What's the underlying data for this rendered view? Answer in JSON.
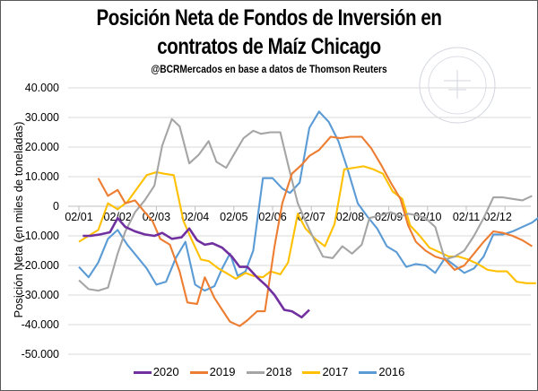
{
  "header": {
    "title_line1": "Posición Neta de Fondos de Inversión en",
    "title_line2": "contratos de Maíz Chicago",
    "subtitle": "@BCRMercados en base a datos de Thomson Reuters"
  },
  "watermark": "Bolsa de Comercio de Rosario seal",
  "chart_data": {
    "type": "line",
    "title": "Posición Neta de Fondos de Inversión en contratos de Maíz Chicago",
    "subtitle": "@BCRMercados en base a datos de Thomson Reuters",
    "xlabel": "",
    "ylabel": "Posición Neta (en miles de toneladas)",
    "ylim": [
      -50000,
      40000
    ],
    "yticks": [
      40000,
      30000,
      20000,
      10000,
      0,
      -10000,
      -20000,
      -30000,
      -40000,
      -50000
    ],
    "ytick_labels": [
      "40.000",
      "30.000",
      "20.000",
      "10.000",
      "0",
      "-10.000",
      "-20.000",
      "-30.000",
      "-40.000",
      "-50.000"
    ],
    "x_tick_labels": [
      "02/01",
      "02/02",
      "02/03",
      "02/04",
      "02/05",
      "02/06",
      "02/07",
      "02/08",
      "02/09",
      "02/10",
      "02/11",
      "02/12"
    ],
    "x_unit": "month position (1 = 02/01, 12 = 02/12)",
    "xlim": [
      1,
      12.9
    ],
    "grid": true,
    "legend_position": "bottom",
    "series": [
      {
        "name": "2020",
        "color": "#7030A0",
        "x": [
          1.1,
          1.3,
          1.55,
          1.8,
          2.0,
          2.2,
          2.45,
          2.7,
          2.95,
          3.15,
          3.4,
          3.65,
          3.85,
          4.05,
          4.25,
          4.45,
          4.7,
          4.95,
          5.15,
          5.35,
          5.6,
          5.85,
          6.05,
          6.3,
          6.5,
          6.75,
          6.95
        ],
        "y": [
          -10000,
          -10000,
          -9500,
          -8800,
          -4000,
          -7000,
          -8500,
          -9500,
          -10000,
          -9000,
          -11000,
          -10500,
          -7500,
          -11500,
          -13000,
          -12500,
          -14000,
          -17000,
          -20500,
          -20500,
          -24000,
          -27000,
          -30000,
          -35000,
          -35500,
          -37500,
          -35000
        ]
      },
      {
        "name": "2019",
        "color": "#ED7D31",
        "x": [
          1.5,
          1.75,
          2.0,
          2.2,
          2.45,
          2.7,
          2.9,
          3.1,
          3.35,
          3.6,
          3.8,
          4.05,
          4.25,
          4.5,
          4.7,
          4.9,
          5.15,
          5.35,
          5.6,
          5.8,
          6.05,
          6.25,
          6.5,
          6.75,
          6.95,
          7.2,
          7.5,
          7.75,
          8.0,
          8.3,
          8.55,
          8.8,
          9.05,
          9.3,
          9.5,
          9.7,
          9.95,
          10.2,
          10.45,
          10.7,
          10.95,
          11.2,
          11.45,
          11.7,
          11.95,
          12.2,
          12.45,
          12.7
        ],
        "y": [
          9500,
          3500,
          5500,
          1000,
          2000,
          -2000,
          -5000,
          -11000,
          -13000,
          -22000,
          -32500,
          -33000,
          -24000,
          -31000,
          -35000,
          -39000,
          -40500,
          -38500,
          -35500,
          -35500,
          -13500,
          1000,
          11000,
          14000,
          17000,
          19000,
          23500,
          23000,
          23500,
          23500,
          19500,
          14000,
          8000,
          2500,
          -6500,
          -12000,
          -15000,
          -17000,
          -18000,
          -21500,
          -20000,
          -16000,
          -12000,
          -8500,
          -9000,
          -10000,
          -11500,
          -13500
        ]
      },
      {
        "name": "2018",
        "color": "#A5A5A5",
        "x": [
          1.0,
          1.25,
          1.5,
          1.75,
          2.0,
          2.2,
          2.45,
          2.7,
          2.95,
          3.15,
          3.4,
          3.6,
          3.85,
          4.1,
          4.35,
          4.55,
          4.8,
          5.0,
          5.25,
          5.5,
          5.7,
          5.95,
          6.2,
          6.4,
          6.65,
          6.85,
          7.1,
          7.3,
          7.55,
          7.8,
          8.05,
          8.3,
          8.5,
          8.8,
          9.05,
          9.3,
          9.5,
          9.7,
          9.95,
          10.2,
          10.45,
          10.7,
          10.95,
          11.2,
          11.45,
          11.7,
          11.95,
          12.2,
          12.45,
          12.7
        ],
        "y": [
          -25000,
          -28000,
          -28500,
          -27500,
          -16000,
          -8500,
          -2000,
          2000,
          7000,
          20500,
          29500,
          27000,
          14500,
          17500,
          22000,
          15000,
          13000,
          17500,
          23000,
          25500,
          24500,
          25000,
          25000,
          14000,
          1000,
          -5000,
          -12000,
          -17000,
          -17500,
          -13500,
          -16000,
          -13000,
          -4000,
          -3000,
          -2000,
          -3500,
          -2500,
          -3000,
          -4000,
          -7000,
          -18000,
          -17000,
          -15000,
          -10000,
          -4000,
          3000,
          3000,
          2500,
          2000,
          3500
        ]
      },
      {
        "name": "2017",
        "color": "#FFC000",
        "x": [
          1.0,
          1.25,
          1.5,
          1.75,
          2.0,
          2.25,
          2.5,
          2.75,
          3.0,
          3.2,
          3.45,
          3.7,
          3.9,
          4.15,
          4.35,
          4.6,
          4.8,
          5.05,
          5.3,
          5.5,
          5.75,
          5.95,
          6.2,
          6.4,
          6.65,
          6.85,
          7.1,
          7.35,
          7.6,
          7.85,
          8.1,
          8.35,
          8.6,
          8.85,
          9.1,
          9.35,
          9.55,
          9.8,
          10.05,
          10.3,
          10.55,
          10.8,
          11.05,
          11.3,
          11.55,
          11.8,
          12.05,
          12.3,
          12.55,
          12.8
        ],
        "y": [
          -12000,
          -10000,
          -8000,
          1000,
          -1000,
          1500,
          6000,
          10500,
          11500,
          11000,
          10500,
          -5000,
          -11000,
          -18000,
          -18500,
          -21000,
          -22500,
          -24500,
          -22500,
          -23500,
          -24000,
          -22000,
          -23000,
          -19000,
          -2500,
          -7500,
          -11000,
          -13500,
          -6000,
          12500,
          13000,
          13500,
          12500,
          11000,
          5000,
          2500,
          -6500,
          -10000,
          -14000,
          -15500,
          -17000,
          -17000,
          -18000,
          -19500,
          -21500,
          -22000,
          -22000,
          -25500,
          -26000,
          -26000
        ]
      },
      {
        "name": "2016",
        "color": "#5B9BD5",
        "x": [
          1.0,
          1.25,
          1.5,
          1.75,
          2.0,
          2.25,
          2.5,
          2.75,
          3.0,
          3.25,
          3.5,
          3.75,
          4.0,
          4.25,
          4.5,
          4.7,
          4.9,
          5.1,
          5.3,
          5.5,
          5.75,
          6.0,
          6.25,
          6.45,
          6.7,
          6.95,
          7.2,
          7.45,
          7.7,
          7.95,
          8.2,
          8.45,
          8.7,
          8.95,
          9.2,
          9.45,
          9.7,
          9.95,
          10.2,
          10.45,
          10.7,
          10.95,
          11.2,
          11.45,
          11.7,
          11.95,
          12.2,
          12.45,
          12.7,
          12.9
        ],
        "y": [
          -20500,
          -24000,
          -19000,
          -11000,
          -8000,
          -13000,
          -17000,
          -21000,
          -26500,
          -25500,
          -17500,
          -12000,
          -26500,
          -28500,
          -27000,
          -21000,
          -16000,
          -23500,
          -22000,
          -15000,
          9500,
          9500,
          6000,
          4500,
          8000,
          26500,
          32000,
          28500,
          22000,
          12000,
          1000,
          -3500,
          -7500,
          -13500,
          -15500,
          -20500,
          -19500,
          -20000,
          -22500,
          -17500,
          -20000,
          -22500,
          -21000,
          -17000,
          -9500,
          -9500,
          -8500,
          -7000,
          -5500,
          -3500
        ]
      }
    ]
  },
  "legend": [
    {
      "label": "2020",
      "color": "#7030A0"
    },
    {
      "label": "2019",
      "color": "#ED7D31"
    },
    {
      "label": "2018",
      "color": "#A5A5A5"
    },
    {
      "label": "2017",
      "color": "#FFC000"
    },
    {
      "label": "2016",
      "color": "#5B9BD5"
    }
  ]
}
